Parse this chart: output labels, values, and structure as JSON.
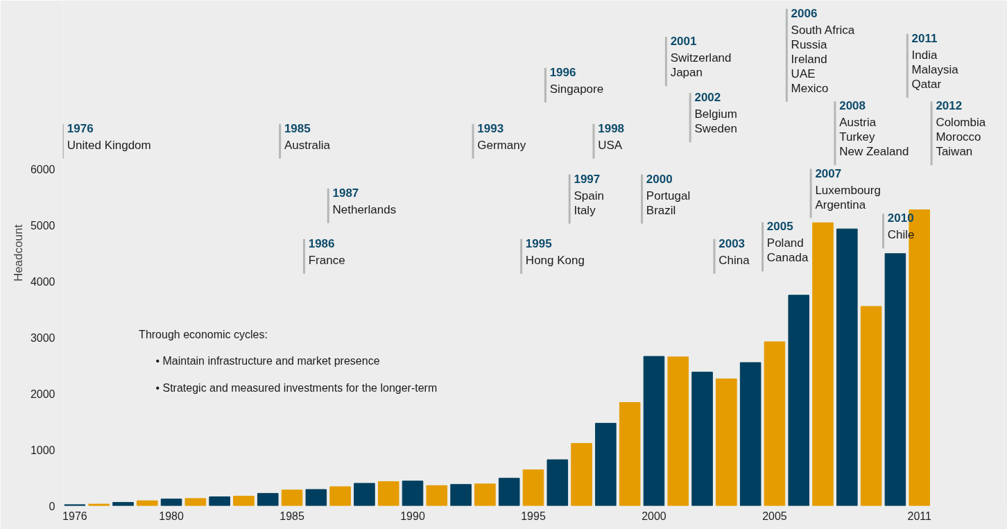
{
  "chart_data": {
    "type": "bar",
    "ylabel": "Headcount",
    "x": [
      1976,
      1977,
      1978,
      1979,
      1980,
      1981,
      1982,
      1983,
      1984,
      1985,
      1986,
      1987,
      1988,
      1989,
      1990,
      1991,
      1992,
      1993,
      1994,
      1995,
      1996,
      1997,
      1998,
      1999,
      2000,
      2001,
      2002,
      2003,
      2004,
      2005,
      2006,
      2007,
      2008,
      2009,
      2010,
      2011
    ],
    "values": [
      20,
      30,
      60,
      90,
      120,
      130,
      160,
      170,
      220,
      280,
      290,
      340,
      400,
      430,
      440,
      360,
      380,
      390,
      490,
      640,
      820,
      1110,
      1470,
      1840,
      2660,
      2650,
      2380,
      2260,
      2550,
      2920,
      3750,
      5040,
      4930,
      3550,
      4490,
      5270
    ],
    "colors": [
      "#003f5f",
      "#e59c00",
      "#003f5f",
      "#e59c00",
      "#003f5f",
      "#e59c00",
      "#003f5f",
      "#e59c00",
      "#003f5f",
      "#e59c00",
      "#003f5f",
      "#e59c00",
      "#003f5f",
      "#e59c00",
      "#003f5f",
      "#e59c00",
      "#003f5f",
      "#e59c00",
      "#003f5f",
      "#e59c00",
      "#003f5f",
      "#e59c00",
      "#003f5f",
      "#e59c00",
      "#003f5f",
      "#e59c00",
      "#003f5f",
      "#e59c00",
      "#003f5f",
      "#e59c00",
      "#003f5f",
      "#e59c00",
      "#003f5f",
      "#e59c00",
      "#003f5f",
      "#e59c00"
    ],
    "xlim": [
      1975.5,
      2014.5
    ],
    "xticks": [
      1976,
      1980,
      1985,
      1990,
      1995,
      2000,
      2005,
      2011
    ],
    "ylim": [
      0,
      9000
    ],
    "yticks": [
      0,
      1000,
      2000,
      3000,
      4000,
      5000,
      6000
    ],
    "grid": false,
    "annotations": [
      "Through economic cycles:",
      "•  Maintain infrastructure and market presence",
      "•  Strategic and measured investments for the longer-term"
    ],
    "ref_lines": [
      {
        "axis": "x",
        "value": 1975.5,
        "label": "1976\nUnited Kingdom"
      },
      {
        "axis": "x",
        "value": 1984.5,
        "label": "1985\nAustralia"
      },
      {
        "axis": "x",
        "value": 1985.5,
        "label": "1986\nFrance"
      },
      {
        "axis": "x",
        "value": 1986.5,
        "label": "1987\nNetherlands"
      },
      {
        "axis": "x",
        "value": 1992.5,
        "label": "1993\nGermany"
      },
      {
        "axis": "x",
        "value": 1994.5,
        "label": "1995\nHong Kong"
      },
      {
        "axis": "x",
        "value": 1995.5,
        "label": "1996\nSingapore"
      },
      {
        "axis": "x",
        "value": 1996.5,
        "label": "1997\nSpain\nItaly"
      },
      {
        "axis": "x",
        "value": 1997.5,
        "label": "1998\nUSA"
      },
      {
        "axis": "x",
        "value": 1999.5,
        "label": "2000\nPortugal\nBrazil"
      },
      {
        "axis": "x",
        "value": 2000.5,
        "label": "2001\nSwitzerland\nJapan"
      },
      {
        "axis": "x",
        "value": 2001.5,
        "label": "2002\nBelgium\nSweden"
      },
      {
        "axis": "x",
        "value": 2002.5,
        "label": "2003\nChina"
      },
      {
        "axis": "x",
        "value": 2004.5,
        "label": "2005\nPoland\nCanada"
      },
      {
        "axis": "x",
        "value": 2005.5,
        "label": "2006\nSouth Africa\nRussia\nIreland\nUAE\nMexico"
      },
      {
        "axis": "x",
        "value": 2006.5,
        "label": "2007\nLuxembourg\nArgentina"
      },
      {
        "axis": "x",
        "value": 2007.5,
        "label": "2008\nAustria\nTurkey\nNew Zealand"
      },
      {
        "axis": "x",
        "value": 2009.5,
        "label": "2010\nChile"
      },
      {
        "axis": "x",
        "value": 2010.5,
        "label": "2011\nIndia\nMalaysia\nQatar"
      },
      {
        "axis": "x",
        "value": 2011.5,
        "label": "2012\nColombia\nMorocco\nTaiwan"
      }
    ]
  }
}
